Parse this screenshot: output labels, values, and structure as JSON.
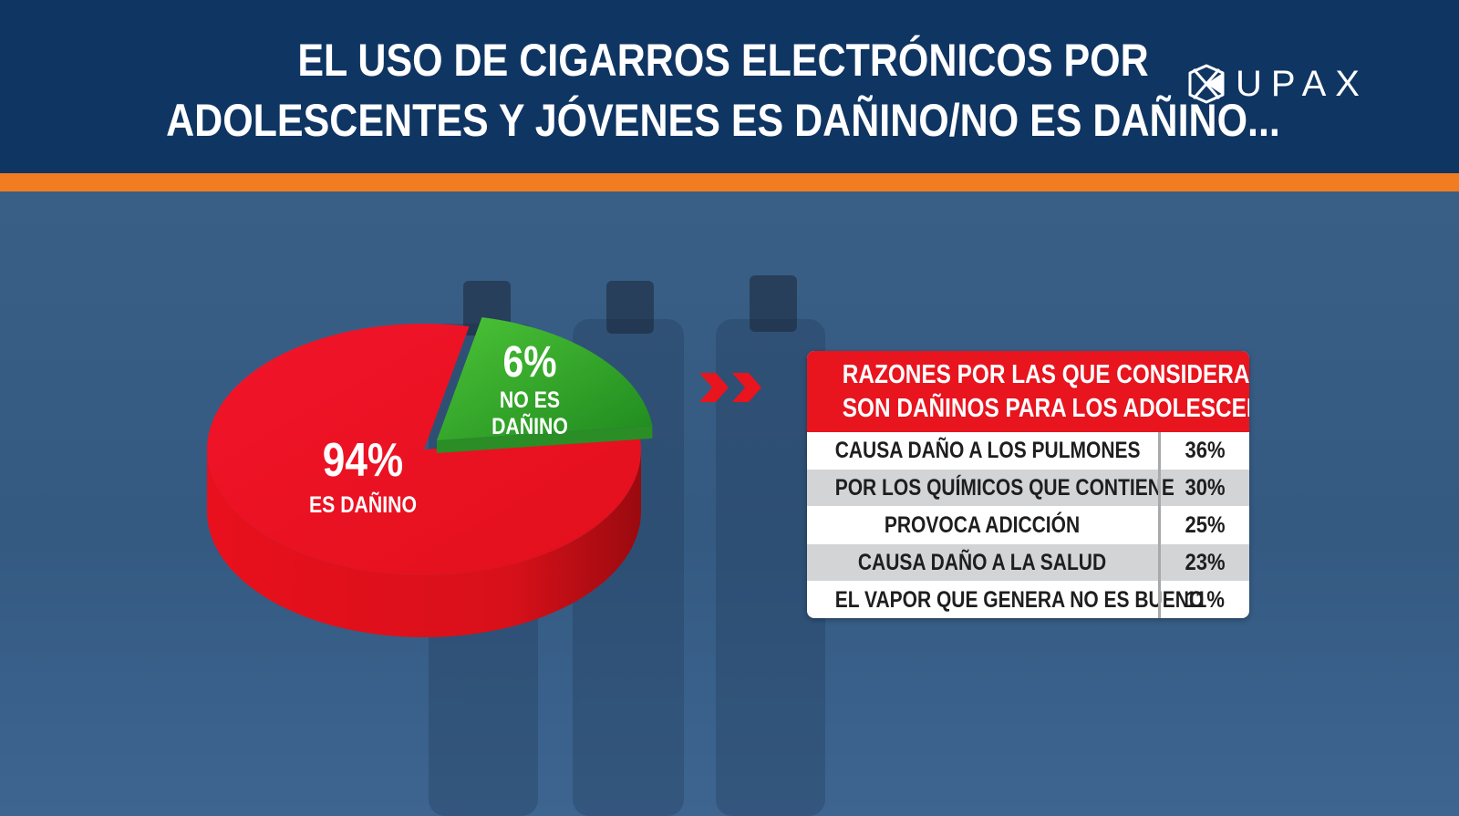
{
  "title": {
    "line1": "EL USO DE CIGARROS ELECTRÓNICOS POR",
    "line2": "ADOLESCENTES Y JÓVENES ES DAÑINO/NO ES DAÑINO..."
  },
  "logo": {
    "text": "UPAX"
  },
  "colors": {
    "header": "#0f3563",
    "accent_orange": "#f27c22",
    "harmful_red": "#e8141e",
    "not_harmful_green": "#3aa72b",
    "table_header_red": "#e8141e"
  },
  "chart_data": [
    {
      "type": "pie",
      "style": "3d",
      "title": "",
      "slices": [
        {
          "label": "ES DAÑINO",
          "value": 94,
          "display": "94%",
          "color": "#e8141e"
        },
        {
          "label": "NO ES DAÑINO",
          "value": 6,
          "display": "6%",
          "color": "#3aa72b"
        }
      ]
    },
    {
      "type": "table",
      "title": "RAZONES POR LAS QUE CONSIDERA QUE SON DAÑINOS PARA LOS ADOLESCENTES",
      "title_lines": [
        "RAZONES POR LAS QUE CONSIDERA QUE",
        "SON DAÑINOS PARA LOS ADOLESCENTES"
      ],
      "rows": [
        {
          "reason": "CAUSA DAÑO A LOS PULMONES",
          "value": 36,
          "display": "36%"
        },
        {
          "reason": "POR LOS QUÍMICOS QUE CONTIENE",
          "value": 30,
          "display": "30%"
        },
        {
          "reason": "PROVOCA ADICCIÓN",
          "value": 25,
          "display": "25%"
        },
        {
          "reason": "CAUSA DAÑO A LA SALUD",
          "value": 23,
          "display": "23%"
        },
        {
          "reason": "EL VAPOR QUE GENERA NO ES BUENO",
          "value": 11,
          "display": "11%"
        }
      ]
    }
  ]
}
